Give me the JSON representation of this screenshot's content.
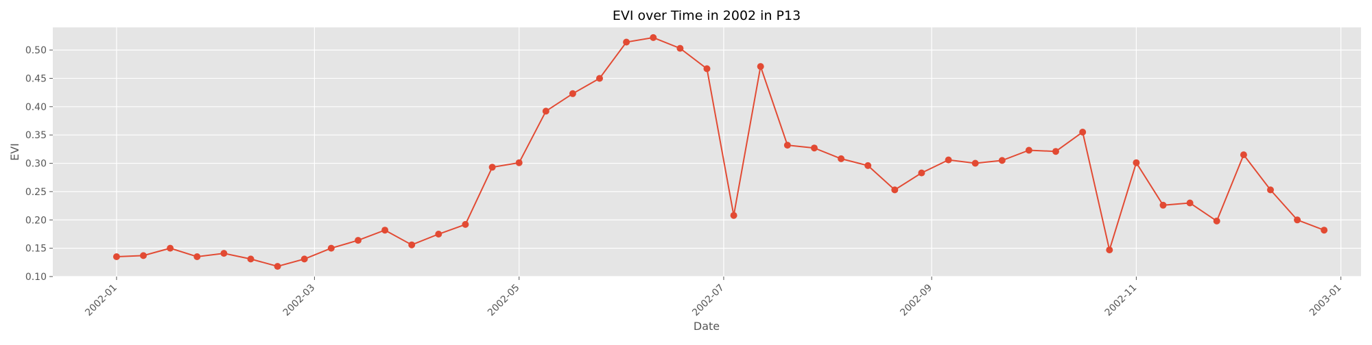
{
  "chart_data": {
    "type": "line",
    "title": "EVI over Time in 2002 in P13",
    "xlabel": "Date",
    "ylabel": "EVI",
    "ylim": [
      0.1,
      0.54
    ],
    "xlim": [
      "2001-12-13",
      "2003-01-07"
    ],
    "grid": true,
    "yticks": [
      "0.10",
      "0.15",
      "0.20",
      "0.25",
      "0.30",
      "0.35",
      "0.40",
      "0.45",
      "0.50"
    ],
    "xticks": [
      "2002-01",
      "2002-03",
      "2002-05",
      "2002-07",
      "2002-09",
      "2002-11",
      "2003-01"
    ],
    "colors": {
      "line": "#e24a33",
      "background": "#e5e5e5",
      "grid": "#ffffff",
      "text": "#555555"
    },
    "series": [
      {
        "x": [
          "2002-01-01",
          "2002-01-09",
          "2002-01-17",
          "2002-01-25",
          "2002-02-02",
          "2002-02-10",
          "2002-02-18",
          "2002-02-26",
          "2002-03-06",
          "2002-03-14",
          "2002-03-22",
          "2002-03-30",
          "2002-04-07",
          "2002-04-15",
          "2002-04-23",
          "2002-05-01",
          "2002-05-09",
          "2002-05-17",
          "2002-05-25",
          "2002-06-02",
          "2002-06-10",
          "2002-06-18",
          "2002-06-26",
          "2002-07-04",
          "2002-07-12",
          "2002-07-20",
          "2002-07-28",
          "2002-08-05",
          "2002-08-13",
          "2002-08-21",
          "2002-08-29",
          "2002-09-06",
          "2002-09-14",
          "2002-09-22",
          "2002-09-30",
          "2002-10-08",
          "2002-10-16",
          "2002-10-24",
          "2002-11-01",
          "2002-11-09",
          "2002-11-17",
          "2002-11-25",
          "2002-12-03",
          "2002-12-11",
          "2002-12-19",
          "2002-12-27"
        ],
        "values": [
          0.135,
          0.137,
          0.15,
          0.135,
          0.141,
          0.131,
          0.118,
          0.131,
          0.15,
          0.164,
          0.182,
          0.156,
          0.175,
          0.192,
          0.293,
          0.301,
          0.392,
          0.423,
          0.45,
          0.514,
          0.522,
          0.503,
          0.467,
          0.208,
          0.471,
          0.332,
          0.327,
          0.308,
          0.296,
          0.253,
          0.283,
          0.306,
          0.3,
          0.305,
          0.323,
          0.321,
          0.355,
          0.147,
          0.301,
          0.226,
          0.23,
          0.198,
          0.315,
          0.253,
          0.2,
          0.182
        ]
      }
    ]
  }
}
